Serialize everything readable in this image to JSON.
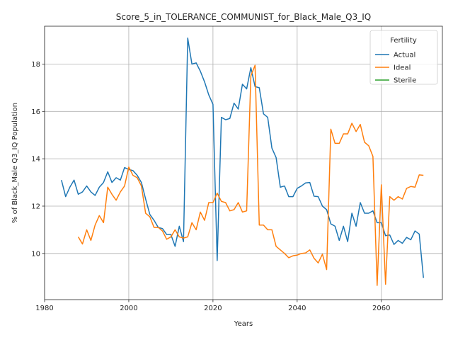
{
  "chart_data": {
    "type": "line",
    "title": "Score_5_in_TOLERANCE_COMMUNIST_for_Black_Male_Q3_IQ",
    "xlabel": "Years",
    "ylabel": "% of Black_Male Q3_IQ Population",
    "xlim": [
      1980.0,
      2074.5
    ],
    "ylim": [
      8.05,
      19.6
    ],
    "xticks": [
      1980,
      2000,
      2020,
      2040,
      2060
    ],
    "yticks": [
      10,
      12,
      14,
      16,
      18
    ],
    "grid": true,
    "legend": {
      "title": "Fertility",
      "placement": "top-right"
    },
    "series": [
      {
        "name": "Actual",
        "color": "#1f77b4",
        "points": [
          [
            1984,
            13.1
          ],
          [
            1985,
            12.4
          ],
          [
            1986,
            12.8
          ],
          [
            1987,
            13.1
          ],
          [
            1988,
            12.5
          ],
          [
            1989,
            12.6
          ],
          [
            1990,
            12.85
          ],
          [
            1991,
            12.6
          ],
          [
            1992,
            12.45
          ],
          [
            1993,
            12.8
          ],
          [
            1994,
            13.0
          ],
          [
            1995,
            13.45
          ],
          [
            1996,
            13.0
          ],
          [
            1997,
            13.2
          ],
          [
            1998,
            13.1
          ],
          [
            1999,
            13.63
          ],
          [
            2000,
            13.55
          ],
          [
            2001,
            13.5
          ],
          [
            2002,
            13.3
          ],
          [
            2003,
            13.0
          ],
          [
            2004,
            12.3
          ],
          [
            2005,
            11.65
          ],
          [
            2006,
            11.4
          ],
          [
            2007,
            11.1
          ],
          [
            2008,
            11.05
          ],
          [
            2009,
            10.8
          ],
          [
            2010,
            10.8
          ],
          [
            2011,
            10.3
          ],
          [
            2012,
            11.15
          ],
          [
            2013,
            10.5
          ],
          [
            2014,
            19.1
          ],
          [
            2015,
            18.0
          ],
          [
            2016,
            18.05
          ],
          [
            2017,
            17.7
          ],
          [
            2018,
            17.25
          ],
          [
            2019,
            16.7
          ],
          [
            2020,
            16.3
          ],
          [
            2021,
            9.7
          ],
          [
            2022,
            15.75
          ],
          [
            2023,
            15.65
          ],
          [
            2024,
            15.7
          ],
          [
            2025,
            16.35
          ],
          [
            2026,
            16.1
          ],
          [
            2027,
            17.15
          ],
          [
            2028,
            16.95
          ],
          [
            2029,
            17.85
          ],
          [
            2030,
            17.05
          ],
          [
            2031,
            17.0
          ],
          [
            2032,
            15.9
          ],
          [
            2033,
            15.75
          ],
          [
            2034,
            14.45
          ],
          [
            2035,
            14.05
          ],
          [
            2036,
            12.8
          ],
          [
            2037,
            12.85
          ],
          [
            2038,
            12.4
          ],
          [
            2039,
            12.4
          ],
          [
            2040,
            12.75
          ],
          [
            2041,
            12.85
          ],
          [
            2042,
            12.98
          ],
          [
            2043,
            13.0
          ],
          [
            2044,
            12.42
          ],
          [
            2045,
            12.4
          ],
          [
            2046,
            12.0
          ],
          [
            2047,
            11.85
          ],
          [
            2048,
            11.25
          ],
          [
            2049,
            11.15
          ],
          [
            2050,
            10.55
          ],
          [
            2051,
            11.15
          ],
          [
            2052,
            10.5
          ],
          [
            2053,
            11.7
          ],
          [
            2054,
            11.15
          ],
          [
            2055,
            12.15
          ],
          [
            2056,
            11.7
          ],
          [
            2057,
            11.7
          ],
          [
            2058,
            11.8
          ],
          [
            2059,
            11.3
          ],
          [
            2060,
            11.3
          ],
          [
            2061,
            10.75
          ],
          [
            2062,
            10.78
          ],
          [
            2063,
            10.38
          ],
          [
            2064,
            10.55
          ],
          [
            2065,
            10.43
          ],
          [
            2066,
            10.68
          ],
          [
            2067,
            10.58
          ],
          [
            2068,
            10.95
          ],
          [
            2069,
            10.82
          ],
          [
            2070,
            8.97
          ]
        ]
      },
      {
        "name": "Ideal",
        "color": "#ff7f0e",
        "points": [
          [
            1988,
            10.7
          ],
          [
            1989,
            10.4
          ],
          [
            1990,
            11.0
          ],
          [
            1991,
            10.55
          ],
          [
            1992,
            11.2
          ],
          [
            1993,
            11.6
          ],
          [
            1994,
            11.3
          ],
          [
            1995,
            12.8
          ],
          [
            1996,
            12.5
          ],
          [
            1997,
            12.25
          ],
          [
            1998,
            12.6
          ],
          [
            1999,
            12.85
          ],
          [
            2000,
            13.65
          ],
          [
            2001,
            13.3
          ],
          [
            2002,
            13.2
          ],
          [
            2003,
            12.85
          ],
          [
            2004,
            11.7
          ],
          [
            2005,
            11.55
          ],
          [
            2006,
            11.1
          ],
          [
            2007,
            11.1
          ],
          [
            2008,
            10.95
          ],
          [
            2009,
            10.6
          ],
          [
            2010,
            10.7
          ],
          [
            2011,
            11.0
          ],
          [
            2012,
            10.7
          ],
          [
            2013,
            10.65
          ],
          [
            2014,
            10.7
          ],
          [
            2015,
            11.3
          ],
          [
            2016,
            11.0
          ],
          [
            2017,
            11.75
          ],
          [
            2018,
            11.4
          ],
          [
            2019,
            12.15
          ],
          [
            2020,
            12.15
          ],
          [
            2021,
            12.55
          ],
          [
            2022,
            12.2
          ],
          [
            2023,
            12.15
          ],
          [
            2024,
            11.8
          ],
          [
            2025,
            11.85
          ],
          [
            2026,
            12.15
          ],
          [
            2027,
            11.75
          ],
          [
            2028,
            11.8
          ],
          [
            2029,
            17.5
          ],
          [
            2030,
            17.95
          ],
          [
            2031,
            11.2
          ],
          [
            2032,
            11.2
          ],
          [
            2033,
            11.0
          ],
          [
            2034,
            11.0
          ],
          [
            2035,
            10.3
          ],
          [
            2036,
            10.15
          ],
          [
            2037,
            10.0
          ],
          [
            2038,
            9.82
          ],
          [
            2039,
            9.9
          ],
          [
            2040,
            9.93
          ],
          [
            2041,
            10.0
          ],
          [
            2042,
            10.02
          ],
          [
            2043,
            10.15
          ],
          [
            2044,
            9.8
          ],
          [
            2045,
            9.6
          ],
          [
            2046,
            9.97
          ],
          [
            2047,
            9.32
          ],
          [
            2048,
            15.25
          ],
          [
            2049,
            14.65
          ],
          [
            2050,
            14.65
          ],
          [
            2051,
            15.05
          ],
          [
            2052,
            15.05
          ],
          [
            2053,
            15.5
          ],
          [
            2054,
            15.15
          ],
          [
            2055,
            15.45
          ],
          [
            2056,
            14.7
          ],
          [
            2057,
            14.55
          ],
          [
            2058,
            14.1
          ],
          [
            2059,
            8.65
          ],
          [
            2060,
            12.9
          ],
          [
            2061,
            8.7
          ],
          [
            2062,
            12.4
          ],
          [
            2063,
            12.25
          ],
          [
            2064,
            12.4
          ],
          [
            2065,
            12.3
          ],
          [
            2066,
            12.75
          ],
          [
            2067,
            12.83
          ],
          [
            2068,
            12.8
          ],
          [
            2069,
            13.32
          ],
          [
            2070,
            13.3
          ]
        ]
      },
      {
        "name": "Sterile",
        "color": "#2ca02c",
        "points": []
      }
    ]
  }
}
